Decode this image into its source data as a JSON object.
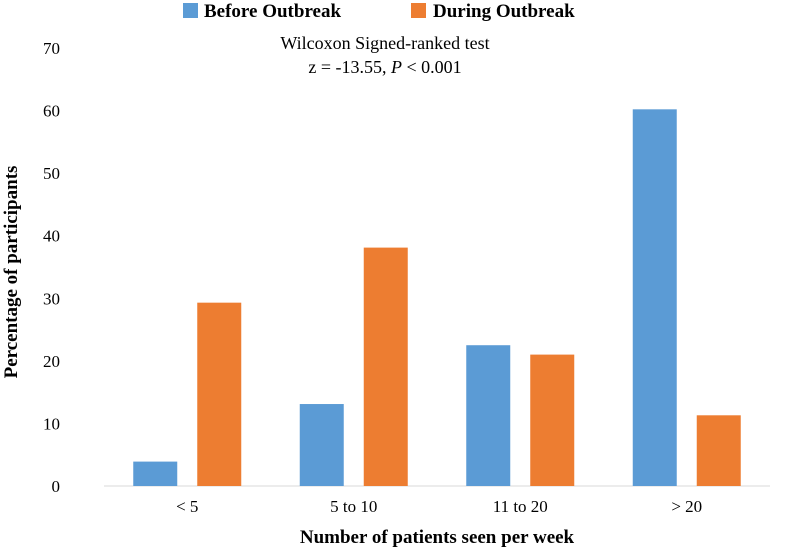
{
  "chart_data": {
    "type": "bar",
    "categories": [
      "< 5",
      "5 to 10",
      "11 to 20",
      "> 20"
    ],
    "series": [
      {
        "name": "Before Outbreak",
        "values": [
          3.9,
          13.1,
          22.5,
          60.2
        ],
        "color": "#5b9bd5"
      },
      {
        "name": "During Outbreak",
        "values": [
          29.3,
          38.1,
          21.0,
          11.3
        ],
        "color": "#ed7d31"
      }
    ],
    "title": "",
    "xlabel": "Number of patients seen per week",
    "ylabel": "Percentage of participants",
    "ylim": [
      0,
      70
    ],
    "yticks": [
      0,
      10,
      20,
      30,
      40,
      50,
      60,
      70
    ],
    "grid": false,
    "legend_position": "top-center",
    "annotation": {
      "line1": "Wilcoxon Signed-ranked test",
      "line2_prefix": "z = -13.55, ",
      "line2_italic": "P",
      "line2_suffix": " < 0.001"
    }
  }
}
